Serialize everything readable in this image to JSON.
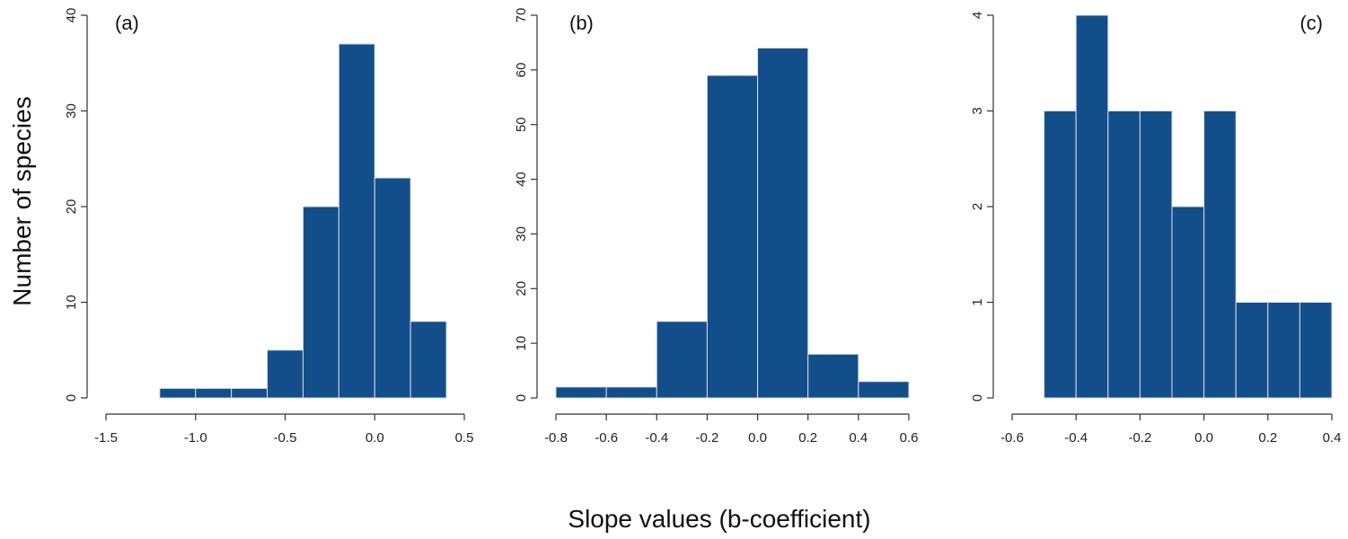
{
  "figure": {
    "ylabel": "Number of species",
    "xlabel": "Slope values (b-coefficient)",
    "bar_color": "#124e8a",
    "bar_edge_color": "#d9dde3"
  },
  "chart_data": [
    {
      "type": "bar",
      "panel_label": "(a)",
      "xlim": [
        -1.5,
        0.5
      ],
      "ylim": [
        0,
        40
      ],
      "xticks": [
        -1.5,
        -1.0,
        -0.5,
        0.0,
        0.5
      ],
      "xtick_labels": [
        "-1.5",
        "-1.0",
        "-0.5",
        "0.0",
        "0.5"
      ],
      "yticks": [
        0,
        10,
        20,
        30,
        40
      ],
      "ytick_labels": [
        "0",
        "10",
        "20",
        "30",
        "40"
      ],
      "bins": [
        [
          -1.2,
          -1.0
        ],
        [
          -1.0,
          -0.8
        ],
        [
          -0.8,
          -0.6
        ],
        [
          -0.6,
          -0.4
        ],
        [
          -0.4,
          -0.2
        ],
        [
          -0.2,
          0.0
        ],
        [
          0.0,
          0.2
        ],
        [
          0.2,
          0.4
        ]
      ],
      "values": [
        1,
        1,
        1,
        5,
        20,
        37,
        23,
        8
      ]
    },
    {
      "type": "bar",
      "panel_label": "(b)",
      "xlim": [
        -0.8,
        0.6
      ],
      "ylim": [
        0,
        70
      ],
      "xticks": [
        -0.8,
        -0.6,
        -0.4,
        -0.2,
        0.0,
        0.2,
        0.4,
        0.6
      ],
      "xtick_labels": [
        "-0.8",
        "-0.6",
        "-0.4",
        "-0.2",
        "0.0",
        "0.2",
        "0.4",
        "0.6"
      ],
      "yticks": [
        0,
        10,
        20,
        30,
        40,
        50,
        60,
        70
      ],
      "ytick_labels": [
        "0",
        "10",
        "20",
        "30",
        "40",
        "50",
        "60",
        "70"
      ],
      "bins": [
        [
          -0.8,
          -0.6
        ],
        [
          -0.6,
          -0.4
        ],
        [
          -0.4,
          -0.2
        ],
        [
          -0.2,
          0.0
        ],
        [
          0.0,
          0.2
        ],
        [
          0.2,
          0.4
        ],
        [
          0.4,
          0.6
        ]
      ],
      "values": [
        2,
        2,
        14,
        59,
        64,
        8,
        3
      ]
    },
    {
      "type": "bar",
      "panel_label": "(c)",
      "xlim": [
        -0.6,
        0.4
      ],
      "ylim": [
        0,
        4
      ],
      "xticks": [
        -0.6,
        -0.4,
        -0.2,
        0.0,
        0.2,
        0.4
      ],
      "xtick_labels": [
        "-0.6",
        "-0.4",
        "-0.2",
        "0.0",
        "0.2",
        "0.4"
      ],
      "yticks": [
        0,
        1,
        2,
        3,
        4
      ],
      "ytick_labels": [
        "0",
        "1",
        "2",
        "3",
        "4"
      ],
      "bins": [
        [
          -0.5,
          -0.4
        ],
        [
          -0.4,
          -0.3
        ],
        [
          -0.3,
          -0.2
        ],
        [
          -0.2,
          -0.1
        ],
        [
          -0.1,
          0.0
        ],
        [
          0.0,
          0.1
        ],
        [
          0.1,
          0.2
        ],
        [
          0.2,
          0.3
        ],
        [
          0.3,
          0.4
        ]
      ],
      "values": [
        3,
        4,
        3,
        3,
        2,
        3,
        1,
        1,
        1
      ]
    }
  ]
}
